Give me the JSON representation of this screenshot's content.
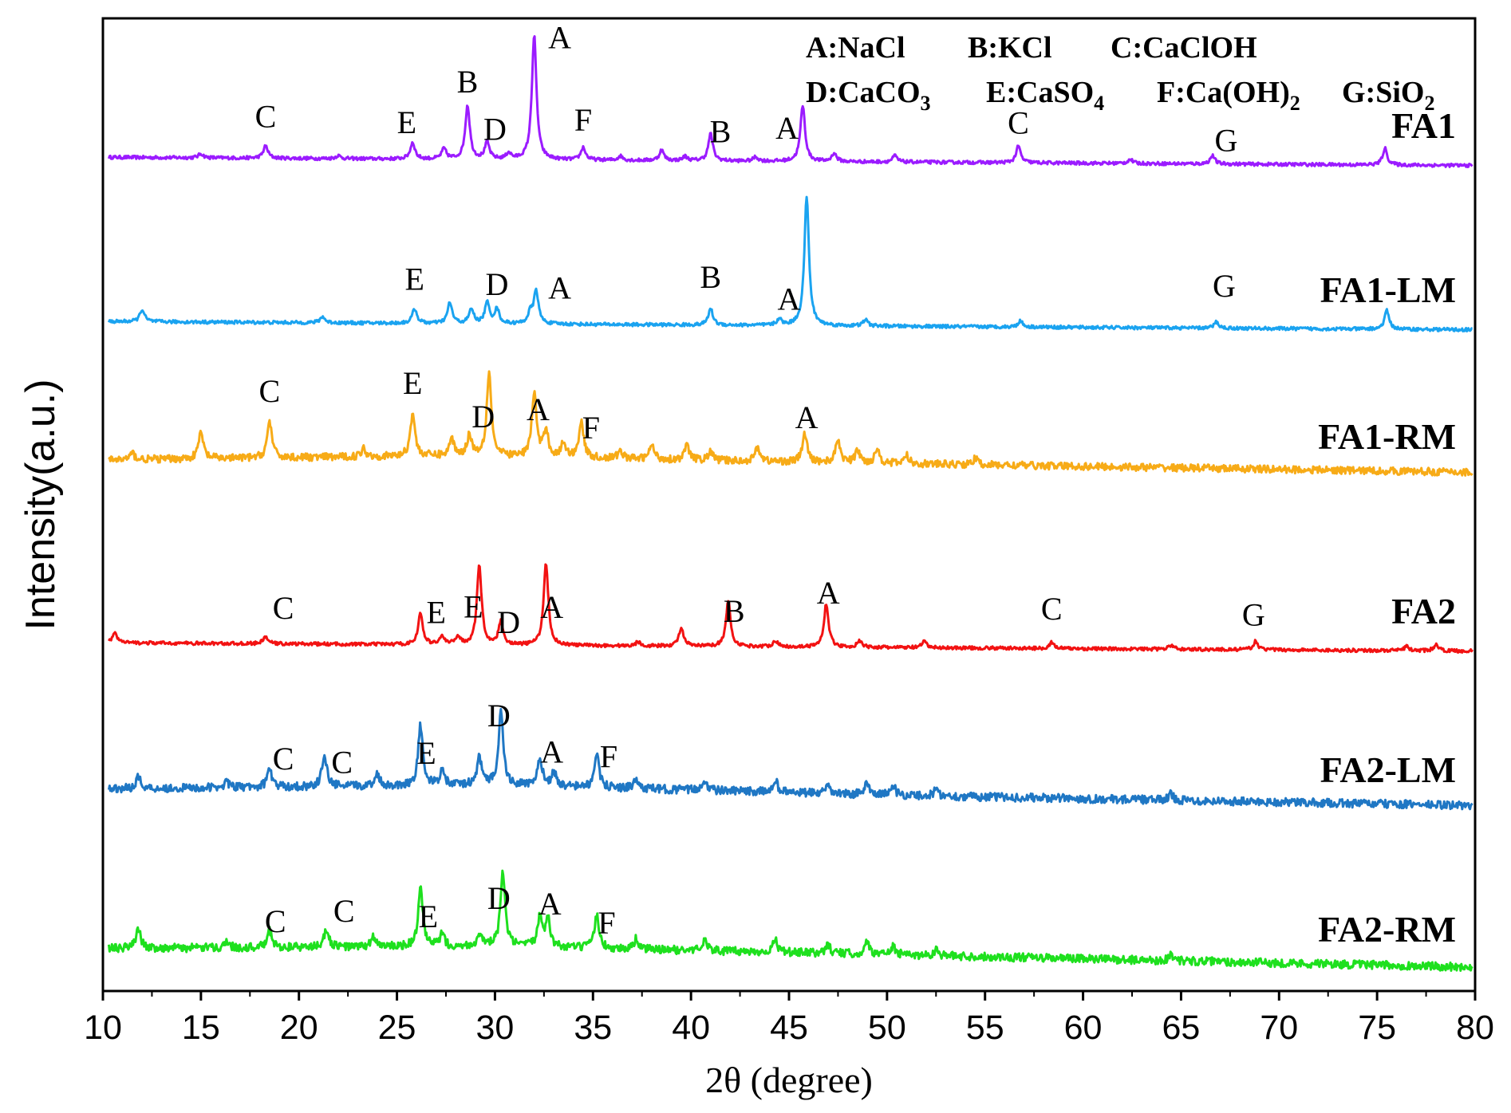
{
  "chart_data": {
    "type": "line",
    "title": "",
    "xlabel": "2θ (degree)",
    "ylabel": "Intensity(a.u.)",
    "xlim": [
      10,
      80
    ],
    "xticks": [
      10,
      15,
      20,
      25,
      30,
      35,
      40,
      45,
      50,
      55,
      60,
      65,
      70,
      75,
      80
    ],
    "xtick_labels": [
      "10",
      "15",
      "20",
      "25",
      "30",
      "35",
      "40",
      "45",
      "50",
      "55",
      "60",
      "65",
      "70",
      "75",
      "80"
    ],
    "legend_lines": [
      [
        {
          "text": "A:NaCl"
        },
        {
          "text": "B:KCl"
        },
        {
          "text": "C:CaClOH"
        }
      ],
      [
        {
          "text": "D:CaCO",
          "sub": "3"
        },
        {
          "text": "E:CaSO",
          "sub": "4"
        },
        {
          "text": "F:Ca(OH)",
          "sub": "2"
        },
        {
          "text": "G:SiO",
          "sub": "2"
        }
      ]
    ],
    "series": [
      {
        "name": "FA1",
        "color": "#9b1bff",
        "baseline": [
          [
            10,
            0.3
          ],
          [
            80,
            -0.1
          ]
        ],
        "noise": 0.08,
        "peaks": [
          [
            15.0,
            0.2
          ],
          [
            18.3,
            0.6
          ],
          [
            22.0,
            0.15
          ],
          [
            25.8,
            0.8
          ],
          [
            27.4,
            0.5
          ],
          [
            28.6,
            2.6
          ],
          [
            29.6,
            0.8
          ],
          [
            30.7,
            0.3
          ],
          [
            32.0,
            6.0
          ],
          [
            34.5,
            0.6
          ],
          [
            36.4,
            0.2
          ],
          [
            38.5,
            0.5
          ],
          [
            39.7,
            0.2
          ],
          [
            41.0,
            1.3
          ],
          [
            43.3,
            0.2
          ],
          [
            45.7,
            2.7
          ],
          [
            47.3,
            0.4
          ],
          [
            50.4,
            0.3
          ],
          [
            56.7,
            0.8
          ],
          [
            62.4,
            0.2
          ],
          [
            66.6,
            0.4
          ],
          [
            75.4,
            0.8
          ]
        ],
        "labels": [
          {
            "text": "C",
            "x": 18.3,
            "dy": 0.9
          },
          {
            "text": "E",
            "x": 25.5,
            "dy": 1.1
          },
          {
            "text": "B",
            "x": 28.6,
            "dy": 0.6
          },
          {
            "text": "D",
            "x": 30.0,
            "dy": 0.8
          },
          {
            "text": "A",
            "x": 33.3,
            "dy": 5.3
          },
          {
            "text": "F",
            "x": 34.5,
            "dy": 0.8
          },
          {
            "text": "B",
            "x": 41.5,
            "dy": 0.8
          },
          {
            "text": "A",
            "x": 44.9,
            "dy": 1.0
          },
          {
            "text": "C",
            "x": 56.7,
            "dy": 0.6
          },
          {
            "text": "G",
            "x": 67.3,
            "dy": 0.6
          }
        ]
      },
      {
        "name": "FA1-LM",
        "color": "#1aa3f0",
        "baseline": [
          [
            10,
            0.3
          ],
          [
            80,
            -0.1
          ]
        ],
        "noise": 0.08,
        "peaks": [
          [
            12.0,
            0.6
          ],
          [
            21.2,
            0.3
          ],
          [
            25.9,
            0.7
          ],
          [
            27.7,
            1.0
          ],
          [
            28.8,
            0.7
          ],
          [
            29.6,
            1.0
          ],
          [
            30.1,
            0.7
          ],
          [
            31.8,
            0.5
          ],
          [
            32.1,
            1.6
          ],
          [
            41.0,
            0.8
          ],
          [
            44.5,
            0.3
          ],
          [
            45.9,
            6.2
          ],
          [
            48.9,
            0.3
          ],
          [
            56.8,
            0.3
          ],
          [
            66.8,
            0.3
          ],
          [
            75.5,
            0.9
          ]
        ],
        "labels": [
          {
            "text": "E",
            "x": 25.9,
            "dy": 0.9
          },
          {
            "text": "D",
            "x": 30.1,
            "dy": 0.6
          },
          {
            "text": "A",
            "x": 33.3,
            "dy": 1.2
          },
          {
            "text": "B",
            "x": 41.0,
            "dy": 1.0
          },
          {
            "text": "A",
            "x": 45.0,
            "dy": 0.6
          },
          {
            "text": "G",
            "x": 67.2,
            "dy": 1.5
          }
        ]
      },
      {
        "name": "FA1-RM",
        "color": "#f7ab17",
        "baseline": [
          [
            10,
            0.7
          ],
          [
            28,
            0.9
          ],
          [
            45,
            0.6
          ],
          [
            80,
            0.1
          ]
        ],
        "noise": 0.18,
        "peaks": [
          [
            11.5,
            0.3
          ],
          [
            15.0,
            1.3
          ],
          [
            18.5,
            1.8
          ],
          [
            23.3,
            0.4
          ],
          [
            25.8,
            2.1
          ],
          [
            27.8,
            0.8
          ],
          [
            28.7,
            1.0
          ],
          [
            29.7,
            4.1
          ],
          [
            32.0,
            3.1
          ],
          [
            32.6,
            1.3
          ],
          [
            33.5,
            0.7
          ],
          [
            34.4,
            1.8
          ],
          [
            36.4,
            0.4
          ],
          [
            38.0,
            0.7
          ],
          [
            39.8,
            0.7
          ],
          [
            41.0,
            0.4
          ],
          [
            43.4,
            0.7
          ],
          [
            45.8,
            1.4
          ],
          [
            47.5,
            1.1
          ],
          [
            48.5,
            0.6
          ],
          [
            49.5,
            0.7
          ],
          [
            51.0,
            0.4
          ],
          [
            54.5,
            0.3
          ]
        ],
        "labels": [
          {
            "text": "C",
            "x": 18.5,
            "dy": 0.9
          },
          {
            "text": "E",
            "x": 25.8,
            "dy": 0.9
          },
          {
            "text": "D",
            "x": 29.4,
            "dy": 0.6
          },
          {
            "text": "A",
            "x": 32.2,
            "dy": 0.6
          },
          {
            "text": "F",
            "x": 34.9,
            "dy": 0.8
          },
          {
            "text": "A",
            "x": 45.9,
            "dy": 0.7
          }
        ]
      },
      {
        "name": "FA2",
        "color": "#f21212",
        "baseline": [
          [
            10,
            0.3
          ],
          [
            80,
            -0.1
          ]
        ],
        "noise": 0.08,
        "peaks": [
          [
            10.6,
            0.5
          ],
          [
            18.3,
            0.35
          ],
          [
            26.2,
            1.5
          ],
          [
            27.3,
            0.4
          ],
          [
            28.1,
            0.4
          ],
          [
            29.2,
            3.9
          ],
          [
            30.3,
            1.1
          ],
          [
            32.6,
            4.0
          ],
          [
            37.3,
            0.2
          ],
          [
            39.5,
            0.9
          ],
          [
            41.9,
            2.2
          ],
          [
            44.3,
            0.3
          ],
          [
            46.9,
            2.1
          ],
          [
            48.6,
            0.3
          ],
          [
            51.9,
            0.3
          ],
          [
            58.4,
            0.3
          ],
          [
            64.5,
            0.2
          ],
          [
            68.8,
            0.4
          ],
          [
            76.5,
            0.2
          ],
          [
            78.0,
            0.3
          ]
        ],
        "labels": [
          {
            "text": "C",
            "x": 19.2,
            "dy": 1.2
          },
          {
            "text": "E",
            "x": 27.0,
            "dy": 0.9
          },
          {
            "text": "E",
            "x": 28.9,
            "dy": 0.6
          },
          {
            "text": "D",
            "x": 30.7,
            "dy": 0.4
          },
          {
            "text": "A",
            "x": 32.9,
            "dy": 0.6
          },
          {
            "text": "B",
            "x": 42.2,
            "dy": 0.8
          },
          {
            "text": "A",
            "x": 47.0,
            "dy": 0.7
          },
          {
            "text": "C",
            "x": 58.4,
            "dy": 1.1
          },
          {
            "text": "G",
            "x": 68.7,
            "dy": 0.9
          }
        ]
      },
      {
        "name": "FA2-LM",
        "color": "#1f77c4",
        "baseline": [
          [
            10,
            0.9
          ],
          [
            30,
            1.1
          ],
          [
            50,
            0.6
          ],
          [
            80,
            0.1
          ]
        ],
        "noise": 0.2,
        "peaks": [
          [
            11.8,
            0.6
          ],
          [
            16.3,
            0.3
          ],
          [
            18.5,
            0.9
          ],
          [
            21.3,
            1.6
          ],
          [
            24.0,
            0.6
          ],
          [
            26.2,
            2.9
          ],
          [
            27.3,
            0.7
          ],
          [
            29.2,
            1.3
          ],
          [
            30.3,
            3.6
          ],
          [
            32.3,
            1.3
          ],
          [
            33.0,
            0.7
          ],
          [
            35.2,
            1.5
          ],
          [
            37.2,
            0.4
          ],
          [
            40.7,
            0.5
          ],
          [
            44.3,
            0.6
          ],
          [
            47.0,
            0.3
          ],
          [
            49.0,
            0.6
          ],
          [
            50.3,
            0.5
          ],
          [
            52.5,
            0.3
          ],
          [
            64.5,
            0.3
          ]
        ],
        "labels": [
          {
            "text": "C",
            "x": 19.2,
            "dy": 0.8
          },
          {
            "text": "C",
            "x": 22.2,
            "dy": 0.6
          },
          {
            "text": "E",
            "x": 26.5,
            "dy": 0.5
          },
          {
            "text": "D",
            "x": 30.2,
            "dy": 0.4
          },
          {
            "text": "A",
            "x": 32.9,
            "dy": 0.6
          },
          {
            "text": "F",
            "x": 35.8,
            "dy": 0.9
          }
        ]
      },
      {
        "name": "FA2-RM",
        "color": "#1ee01e",
        "baseline": [
          [
            10,
            0.9
          ],
          [
            30,
            1.0
          ],
          [
            50,
            0.6
          ],
          [
            80,
            0.0
          ]
        ],
        "noise": 0.2,
        "peaks": [
          [
            11.8,
            1.0
          ],
          [
            16.3,
            0.3
          ],
          [
            18.5,
            0.8
          ],
          [
            21.4,
            0.9
          ],
          [
            23.8,
            0.5
          ],
          [
            26.2,
            2.8
          ],
          [
            27.3,
            0.6
          ],
          [
            29.2,
            0.6
          ],
          [
            30.4,
            3.6
          ],
          [
            32.3,
            1.6
          ],
          [
            32.7,
            1.3
          ],
          [
            35.2,
            1.6
          ],
          [
            37.2,
            0.5
          ],
          [
            40.7,
            0.6
          ],
          [
            44.3,
            0.6
          ],
          [
            47.0,
            0.4
          ],
          [
            49.0,
            0.6
          ],
          [
            50.3,
            0.4
          ],
          [
            52.5,
            0.3
          ],
          [
            64.5,
            0.3
          ]
        ],
        "labels": [
          {
            "text": "C",
            "x": 18.8,
            "dy": 0.6
          },
          {
            "text": "C",
            "x": 22.3,
            "dy": 1.2
          },
          {
            "text": "E",
            "x": 26.6,
            "dy": 0.6
          },
          {
            "text": "D",
            "x": 30.2,
            "dy": 0.6
          },
          {
            "text": "A",
            "x": 32.8,
            "dy": 0.6
          },
          {
            "text": "F",
            "x": 35.7,
            "dy": 0.6
          }
        ]
      }
    ]
  }
}
